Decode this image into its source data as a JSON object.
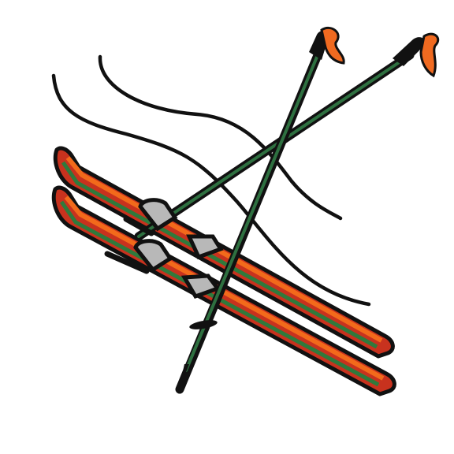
{
  "image": {
    "subject": "ski-equipment-clipart",
    "background_color": "#ffffff"
  },
  "colors": {
    "outline": "#111111",
    "ski_red": "#c8321e",
    "ski_orange": "#f26a1b",
    "ski_green": "#2f7a3c",
    "pole_green": "#2e7040",
    "grip_orange": "#f06a20",
    "binding_gray": "#b8b8b8",
    "motion_line": "#111111"
  },
  "objects": {
    "skis": 2,
    "poles": 2,
    "motion_lines": 3
  }
}
